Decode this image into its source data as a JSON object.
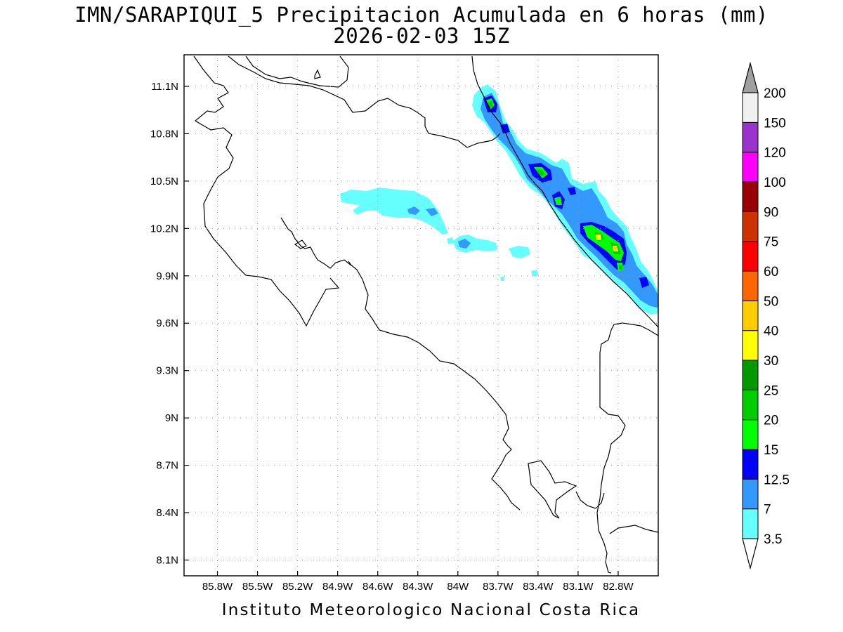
{
  "title": {
    "line1": "IMN/SARAPIQUI_5 Precipitacion Acumulada en 6 horas (mm)",
    "line2": "2026-02-03 15Z"
  },
  "credit": "Instituto Meteorologico Nacional Costa Rica",
  "map": {
    "lon_range": [
      -86.05,
      -82.5
    ],
    "lat_range": [
      8.0,
      11.3
    ],
    "lat_ticks": [
      {
        "value": 11.1,
        "label": "11.1N"
      },
      {
        "value": 10.8,
        "label": "10.8N"
      },
      {
        "value": 10.5,
        "label": "10.5N"
      },
      {
        "value": 10.2,
        "label": "10.2N"
      },
      {
        "value": 9.9,
        "label": "9.9N"
      },
      {
        "value": 9.6,
        "label": "9.6N"
      },
      {
        "value": 9.3,
        "label": "9.3N"
      },
      {
        "value": 9.0,
        "label": "9N"
      },
      {
        "value": 8.7,
        "label": "8.7N"
      },
      {
        "value": 8.4,
        "label": "8.4N"
      },
      {
        "value": 8.1,
        "label": "8.1N"
      }
    ],
    "lon_ticks": [
      {
        "value": -85.8,
        "label": "85.8W"
      },
      {
        "value": -85.5,
        "label": "85.5W"
      },
      {
        "value": -85.2,
        "label": "85.2W"
      },
      {
        "value": -84.9,
        "label": "84.9W"
      },
      {
        "value": -84.6,
        "label": "84.6W"
      },
      {
        "value": -84.3,
        "label": "84.3W"
      },
      {
        "value": -84.0,
        "label": "84W"
      },
      {
        "value": -83.7,
        "label": "83.7W"
      },
      {
        "value": -83.4,
        "label": "83.4W"
      },
      {
        "value": -83.1,
        "label": "83.1W"
      },
      {
        "value": -82.8,
        "label": "82.8W"
      }
    ],
    "grid": "dotted"
  },
  "colorbar": {
    "unit": "mm",
    "labels": [
      "3.5",
      "7",
      "12.5",
      "15",
      "20",
      "25",
      "30",
      "40",
      "50",
      "60",
      "75",
      "90",
      "100",
      "120",
      "150",
      "200"
    ],
    "colors": [
      "#66ffff",
      "#3399ff",
      "#0000ff",
      "#00ff00",
      "#00cc00",
      "#009900",
      "#ffff00",
      "#ffcc00",
      "#ff6600",
      "#ff0000",
      "#cc3300",
      "#990000",
      "#ff00ff",
      "#9933cc",
      "#f0f0f0"
    ],
    "over_color": "#a0a0a0",
    "under_color": "#ffffff"
  }
}
